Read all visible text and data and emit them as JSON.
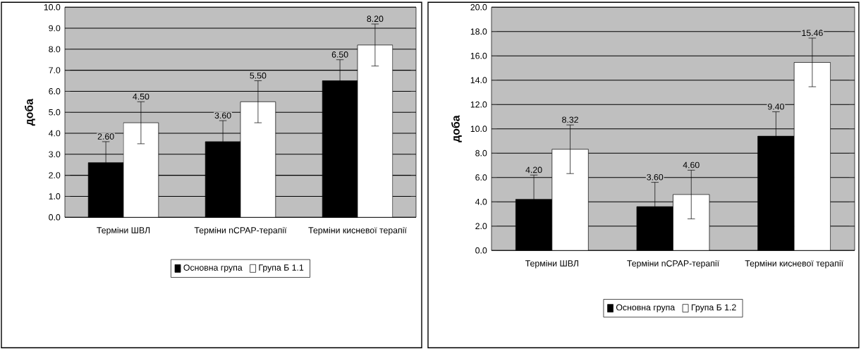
{
  "chart_data": [
    {
      "type": "bar",
      "ylabel": "доба",
      "categories": [
        "Терміни ШВЛ",
        "Терміни nCPAP-терапії",
        "Терміни кисневої терапії"
      ],
      "series": [
        {
          "name": "Основна група",
          "color": "#000000",
          "values": [
            2.6,
            3.6,
            6.5
          ],
          "errors": [
            1.0,
            1.0,
            1.0
          ],
          "value_labels": [
            "2.60",
            "3.60",
            "6.50"
          ]
        },
        {
          "name": "Група Б 1.1",
          "color": "#ffffff",
          "values": [
            4.5,
            5.5,
            8.2
          ],
          "errors": [
            1.0,
            1.0,
            1.0
          ],
          "value_labels": [
            "4.50",
            "5.50",
            "8.20"
          ]
        }
      ],
      "ylim": [
        0,
        10
      ],
      "yticks": [
        {
          "value": 0,
          "label": "0.0"
        },
        {
          "value": 1,
          "label": "1.0"
        },
        {
          "value": 2,
          "label": "2.0"
        },
        {
          "value": 3,
          "label": "3.0"
        },
        {
          "value": 4,
          "label": "4.0"
        },
        {
          "value": 5,
          "label": "5.0"
        },
        {
          "value": 6,
          "label": "6.0"
        },
        {
          "value": 7,
          "label": "7.0"
        },
        {
          "value": 8,
          "label": "8.0"
        },
        {
          "value": 9,
          "label": "9.0"
        },
        {
          "value": 10,
          "label": "10.0"
        }
      ],
      "grid": "y",
      "legend": "bottom"
    },
    {
      "type": "bar",
      "ylabel": "доба",
      "categories": [
        "Терміни ШВЛ",
        "Терміни nCPAP-терапії",
        "Терміни кисневої терапії"
      ],
      "series": [
        {
          "name": "Основна група",
          "color": "#000000",
          "values": [
            4.2,
            3.6,
            9.4
          ],
          "errors": [
            2.0,
            2.0,
            2.0
          ],
          "value_labels": [
            "4.20",
            "3.60",
            "9.40"
          ]
        },
        {
          "name": "Група Б 1.2",
          "color": "#ffffff",
          "values": [
            8.32,
            4.6,
            15.46
          ],
          "errors": [
            2.0,
            2.0,
            2.0
          ],
          "value_labels": [
            "8.32",
            "4.60",
            "15.46"
          ]
        }
      ],
      "ylim": [
        0,
        20
      ],
      "yticks": [
        {
          "value": 0,
          "label": "0.0"
        },
        {
          "value": 2,
          "label": "2.0"
        },
        {
          "value": 4,
          "label": "4.0"
        },
        {
          "value": 6,
          "label": "6.0"
        },
        {
          "value": 8,
          "label": "8.0"
        },
        {
          "value": 10,
          "label": "10.0"
        },
        {
          "value": 12,
          "label": "12.0"
        },
        {
          "value": 14,
          "label": "14.0"
        },
        {
          "value": 16,
          "label": "16.0"
        },
        {
          "value": 18,
          "label": "18.0"
        },
        {
          "value": 20,
          "label": "20.0"
        }
      ],
      "grid": "y",
      "legend": "bottom"
    }
  ]
}
